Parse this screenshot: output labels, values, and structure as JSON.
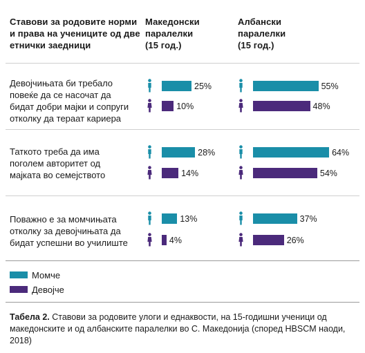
{
  "colors": {
    "boys": "#1a8ea8",
    "girls": "#4b2a7b",
    "rule": "#cfcfcf"
  },
  "header": {
    "col1": [
      "Ставови за родовите норми",
      "и права на учениците од две",
      "етнички заедници"
    ],
    "col2": [
      "Македонски",
      "паралелки",
      "(15 год.)"
    ],
    "col3": [
      "Албански",
      "паралелки",
      "(15 год.)"
    ]
  },
  "chart_data": {
    "type": "bar",
    "orientation": "horizontal",
    "unit": "%",
    "xlim": [
      0,
      70
    ],
    "groups": [
      "Македонски паралелки (15 год.)",
      "Албански паралелки (15 год.)"
    ],
    "series_names": [
      "Момче",
      "Девојче"
    ],
    "categories": [
      [
        "Девојчињата би требало",
        "повеќе да се насочат да",
        "бидат добри мајки и сопруги",
        "отколку да тераат кариера"
      ],
      [
        "Таткото треба да има",
        "поголем авторитет од",
        "мајката во семејството"
      ],
      [
        "Поважно е за момчињата",
        "отколку за девојчињата да",
        "бидат успешни во училиште"
      ]
    ],
    "values": [
      {
        "mk": {
          "boys": 25,
          "girls": 10
        },
        "al": {
          "boys": 55,
          "girls": 48
        }
      },
      {
        "mk": {
          "boys": 28,
          "girls": 14
        },
        "al": {
          "boys": 64,
          "girls": 54
        }
      },
      {
        "mk": {
          "boys": 13,
          "girls": 4
        },
        "al": {
          "boys": 37,
          "girls": 26
        }
      }
    ]
  },
  "legend": {
    "boys": "Момче",
    "girls": "Девојче"
  },
  "caption": {
    "label": "Табела 2.",
    "text": " Ставови за родовите улоги и еднаквости, на 15-годишни ученици од македонските и од албанските паралелки во С. Македонија (според HBSCM наоди, 2018)"
  }
}
